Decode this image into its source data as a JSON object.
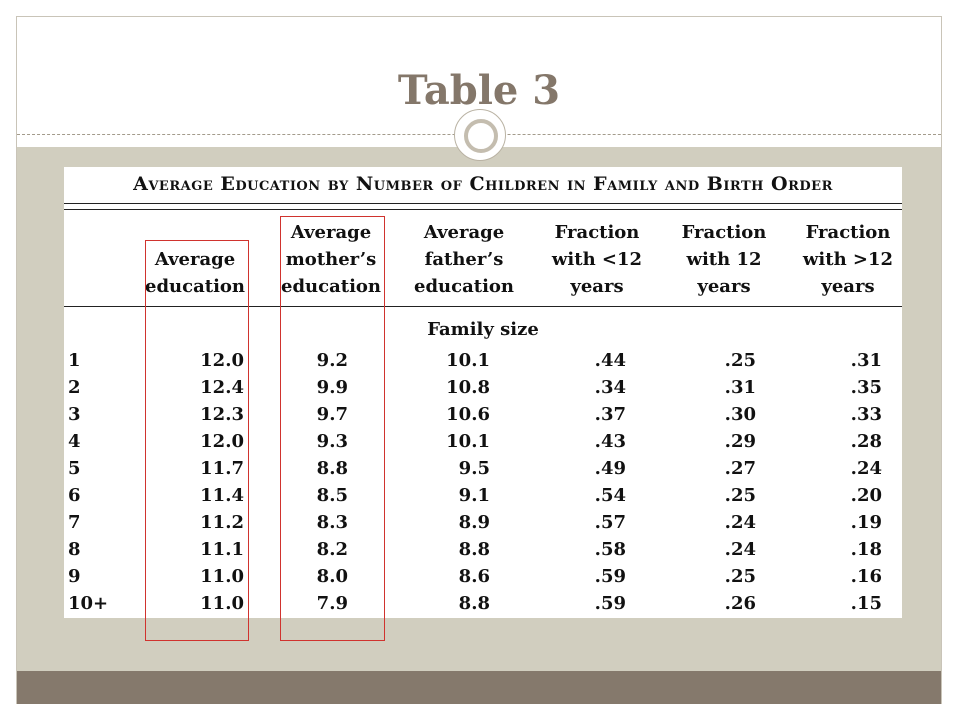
{
  "slide": {
    "title": "Table 3"
  },
  "table": {
    "caption": "Average Education by Number of Children in Family and Birth Order",
    "headers": [
      [
        "Average",
        "education"
      ],
      [
        "Average",
        "mother’s",
        "education"
      ],
      [
        "Average",
        "father’s",
        "education"
      ],
      [
        "Fraction",
        "with <12",
        "years"
      ],
      [
        "Fraction",
        "with 12",
        "years"
      ],
      [
        "Fraction",
        "with >12",
        "years"
      ]
    ],
    "section_label": "Family size",
    "rows": [
      [
        "1",
        "12.0",
        "9.2",
        "10.1",
        ".44",
        ".25",
        ".31"
      ],
      [
        "2",
        "12.4",
        "9.9",
        "10.8",
        ".34",
        ".31",
        ".35"
      ],
      [
        "3",
        "12.3",
        "9.7",
        "10.6",
        ".37",
        ".30",
        ".33"
      ],
      [
        "4",
        "12.0",
        "9.3",
        "10.1",
        ".43",
        ".29",
        ".28"
      ],
      [
        "5",
        "11.7",
        "8.8",
        "9.5",
        ".49",
        ".27",
        ".24"
      ],
      [
        "6",
        "11.4",
        "8.5",
        "9.1",
        ".54",
        ".25",
        ".20"
      ],
      [
        "7",
        "11.2",
        "8.3",
        "8.9",
        ".57",
        ".24",
        ".19"
      ],
      [
        "8",
        "11.1",
        "8.2",
        "8.8",
        ".58",
        ".24",
        ".18"
      ],
      [
        "9",
        "11.0",
        "8.0",
        "8.6",
        ".59",
        ".25",
        ".16"
      ],
      [
        "10+",
        "11.0",
        "7.9",
        "8.8",
        ".59",
        ".26",
        ".15"
      ]
    ]
  },
  "colors": {
    "title": "#84776a",
    "body_background": "#d1cebf",
    "footer_bar": "#85796c",
    "highlight_box": "#d0332e"
  },
  "icons": [
    "circle-ornament-icon"
  ]
}
